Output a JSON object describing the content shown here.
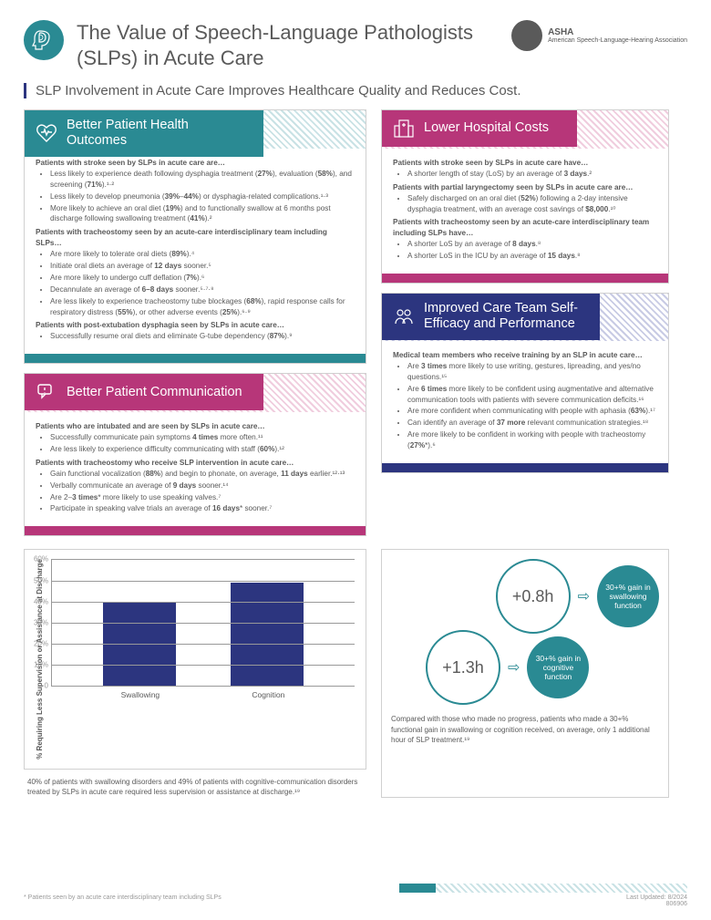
{
  "header": {
    "title": "The Value of Speech-Language Pathologists (SLPs) in Acute Care",
    "logo_name": "ASHA",
    "logo_sub": "American\nSpeech-Language-Hearing\nAssociation",
    "subtitle": "SLP Involvement in Acute Care Improves Healthcare Quality and Reduces Cost."
  },
  "sections": {
    "outcomes": {
      "title": "Better Patient Health Outcomes",
      "color": "#2a8a93",
      "lead1": "Patients with stroke seen by SLPs in acute care are…",
      "b1": [
        "Less likely to experience death following dysphagia treatment (27%), evaluation (58%), and screening (71%).¹·²",
        "Less likely to develop pneumonia (39%–44%) or dysphagia-related complications.¹·³",
        "More likely to achieve an oral diet (19%) and to functionally swallow at 6 months post discharge following swallowing treatment (41%).²"
      ],
      "lead2": "Patients with tracheostomy seen by an acute-care interdisciplinary team including SLPs…",
      "b2": [
        "Are more likely to tolerate oral diets (89%).⁴",
        "Initiate oral diets an average of 12 days sooner.⁵",
        "Are more likely to undergo cuff deflation (7%).⁶",
        "Decannulate an average of 6–8 days sooner.⁵·⁷·⁸",
        "Are less likely to experience tracheostomy tube blockages (68%), rapid response calls for respiratory distress (55%), or other adverse events (25%).⁶·⁹"
      ],
      "lead3": "Patients with post-extubation dysphagia seen by SLPs in acute care…",
      "b3": [
        "Successfully resume oral diets and eliminate G-tube dependency (87%).⁹"
      ]
    },
    "communication": {
      "title": "Better Patient Communication",
      "color": "#b73679",
      "lead1": "Patients who are intubated and are seen by SLPs in acute care…",
      "b1": [
        "Successfully communicate pain symptoms 4 times more often.¹¹",
        "Are less likely to experience difficulty communicating with staff (60%).¹²"
      ],
      "lead2": "Patients with tracheostomy who receive SLP intervention in acute care…",
      "b2": [
        "Gain functional vocalization (88%) and begin to phonate, on average, 11 days earlier.¹²·¹³",
        "Verbally communicate an average of 9 days sooner.¹⁴",
        "Are 2–3 times* more likely to use speaking valves.⁷",
        "Participate in speaking valve trials an average of 16 days* sooner.⁷"
      ]
    },
    "costs": {
      "title": "Lower Hospital Costs",
      "color": "#b73679",
      "lead1": "Patients with stroke seen by SLPs in acute care have…",
      "b1": [
        "A shorter length of stay (LoS) by an average of 3 days.²"
      ],
      "lead2": "Patients with partial laryngectomy seen by SLPs in acute care are…",
      "b2": [
        "Safely discharged on an oral diet (52%) following a 2-day intensive dysphagia treatment, with an average cost savings of $8,000.¹⁰"
      ],
      "lead3": "Patients with tracheostomy seen by an acute-care interdisciplinary team including SLPs have…",
      "b3": [
        "A shorter LoS by an average of 8 days.⁸",
        "A shorter LoS in the ICU by an average of 15 days.⁸"
      ]
    },
    "efficacy": {
      "title": "Improved Care Team Self-Efficacy and Performance",
      "color": "#2c357f",
      "lead1": "Medical team members who receive training by an SLP in acute care…",
      "b1": [
        "Are 3 times more likely to use writing, gestures, lipreading, and yes/no questions.¹⁵",
        "Are 6 times more likely to be confident using augmentative and alternative communication tools with patients with severe communication deficits.¹⁶",
        "Are more confident when communicating with people with aphasia (63%).¹⁷",
        "Can identify an average of 37 more relevant communication strategies.¹⁸",
        "Are more likely to be confident in working with people with tracheostomy (27%*).⁶"
      ]
    }
  },
  "chart": {
    "ylabel": "% Requiring Less Supervision or Assistance at Discharge",
    "yticks": [
      "0",
      "10%",
      "20%",
      "30%",
      "40%",
      "50%",
      "60%"
    ],
    "ylim": 60,
    "categories": [
      "Swallowing",
      "Cognition"
    ],
    "values": [
      40,
      49
    ],
    "bar_color": "#2c357f",
    "grid_color": "#999999",
    "caption": "40% of patients with swallowing disorders and 49% of patients with cognitive-communication disorders treated by SLPs in acute care required less supervision or assistance at discharge.¹⁹"
  },
  "bubbles": {
    "rows": [
      {
        "big": "+0.8h",
        "small": "30+% gain in swallowing function"
      },
      {
        "big": "+1.3h",
        "small": "30+% gain in cognitive function"
      }
    ],
    "caption": "Compared with those who made no progress, patients who made a 30+% functional gain in swallowing or cognition received, on average, only 1 additional hour of SLP treatment.¹⁹",
    "circle_border": "#2a8a93",
    "circle_fill": "#2a8a93"
  },
  "footer": {
    "note": "* Patients seen by an acute care interdisciplinary team including SLPs",
    "updated": "Last Updated: 8/2024",
    "code": "806906"
  },
  "colors": {
    "teal": "#2a8a93",
    "magenta": "#b73679",
    "navy": "#2c357f",
    "text": "#5a5a5a"
  }
}
